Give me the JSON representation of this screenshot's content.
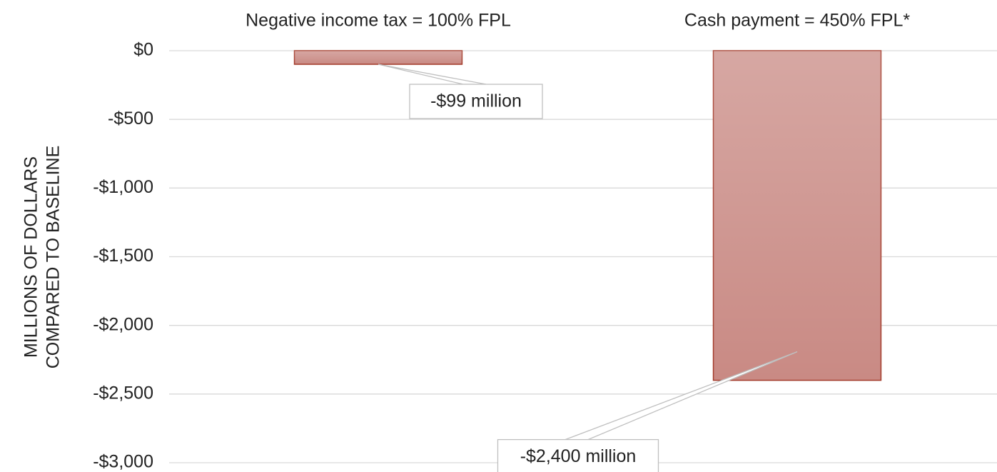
{
  "chart_data": {
    "type": "bar",
    "categories": [
      "Negative income tax = 100% FPL",
      "Cash payment = 450% FPL*"
    ],
    "values": [
      -99,
      -2400
    ],
    "value_labels": [
      "-$99 million",
      "-$2,400 million"
    ],
    "color": "#c98a84",
    "y_label": [
      "MILLIONS OF DOLLARS",
      "COMPARED TO BASELINE"
    ],
    "ylim": [
      -3000,
      0
    ],
    "yticks": [
      {
        "value": 0,
        "label": "$0"
      },
      {
        "value": -500,
        "label": "-$500"
      },
      {
        "value": -1000,
        "label": "-$1,000"
      },
      {
        "value": -1500,
        "label": "-$1,500"
      },
      {
        "value": -2000,
        "label": "-$2,000"
      },
      {
        "value": -2500,
        "label": "-$2,500"
      },
      {
        "value": -3000,
        "label": "-$3,000"
      }
    ],
    "grid": true
  }
}
